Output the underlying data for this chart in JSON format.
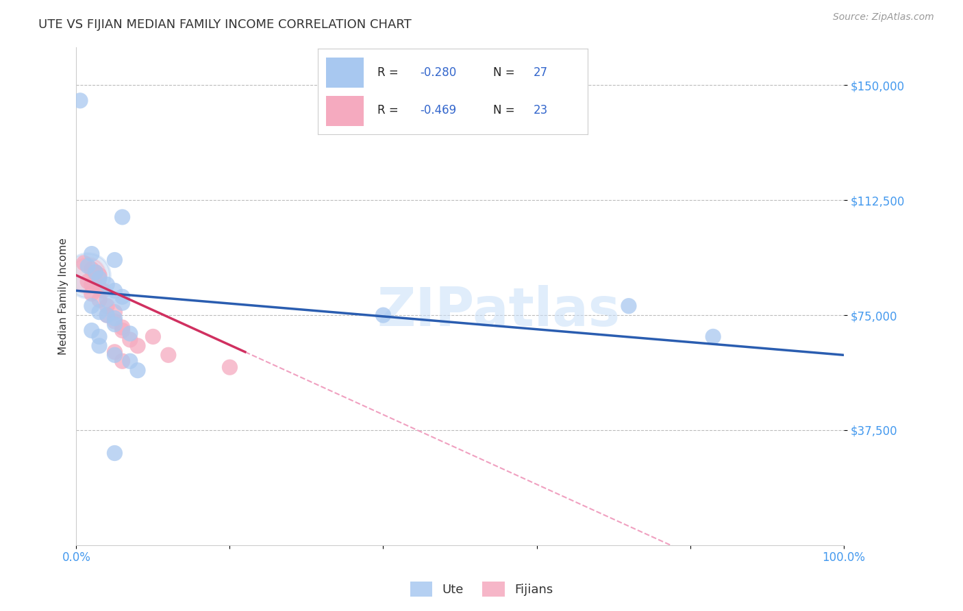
{
  "title": "UTE VS FIJIAN MEDIAN FAMILY INCOME CORRELATION CHART",
  "source_text": "Source: ZipAtlas.com",
  "ylabel": "Median Family Income",
  "watermark": "ZIPatlas",
  "ute_color": "#A8C8F0",
  "fijian_color": "#F5AABF",
  "ute_line_color": "#2A5DB0",
  "fijian_line_color": "#D03060",
  "fijian_dash_color": "#F0A0C0",
  "legend_ute_R": "R = -0.280",
  "legend_ute_N": "N = 27",
  "legend_fij_R": "R = -0.469",
  "legend_fij_N": "N = 23",
  "legend_label_ute": "Ute",
  "legend_label_fijian": "Fijians",
  "xlim": [
    0,
    100
  ],
  "ylim": [
    0,
    162500
  ],
  "background_color": "#FFFFFF",
  "grid_color": "#BBBBBB",
  "label_color": "#4499EE",
  "title_color": "#333333",
  "text_color": "#333333",
  "source_color": "#999999"
}
